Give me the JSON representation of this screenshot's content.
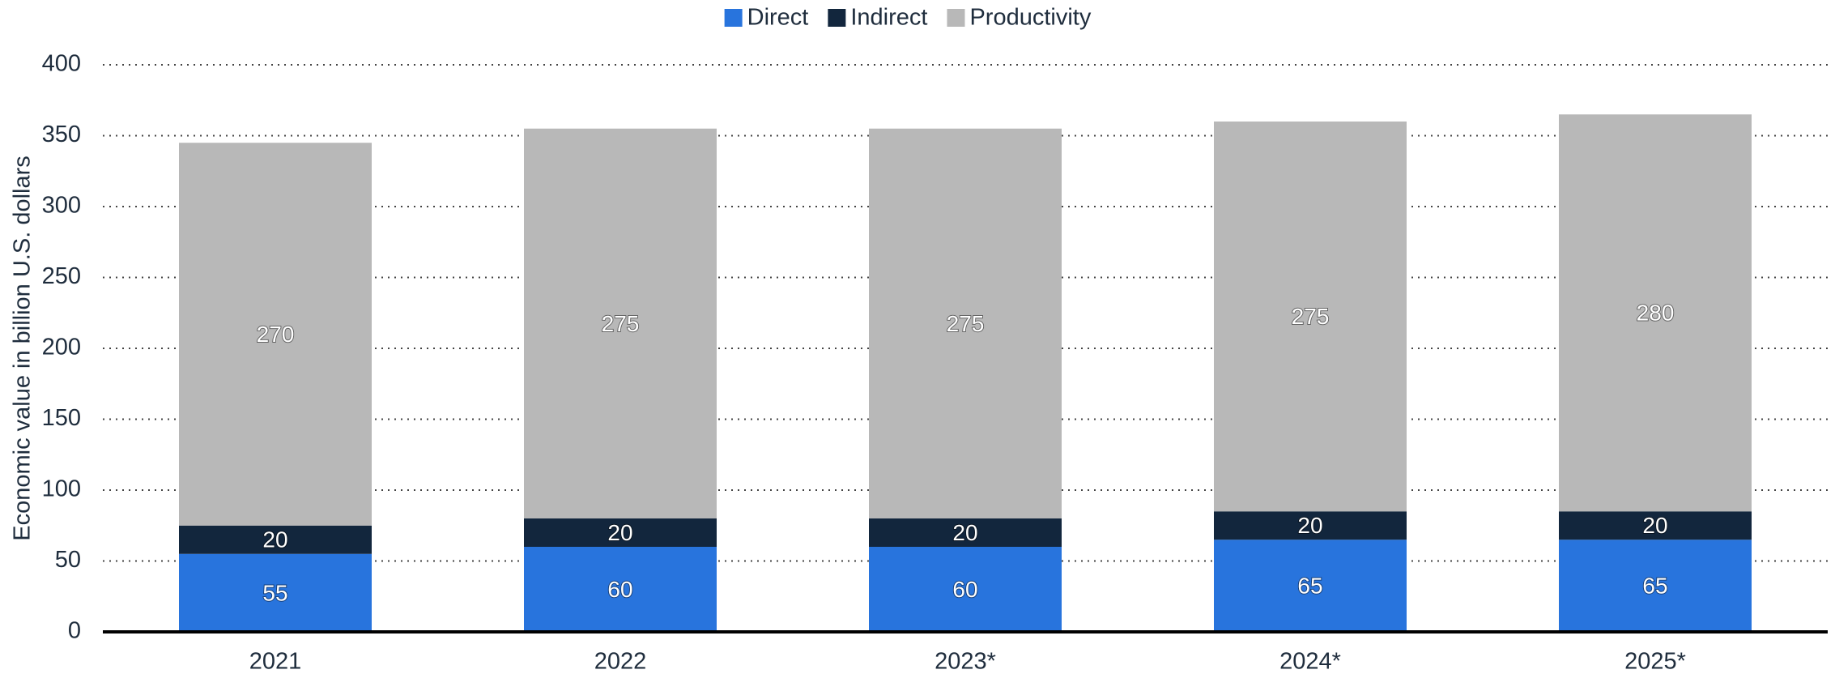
{
  "chart_data": {
    "type": "stacked_bar",
    "y_label": "Economic value in billion U.S. dollars",
    "categories": [
      "2021",
      "2022",
      "2023*",
      "2024*",
      "2025*"
    ],
    "series": [
      {
        "name": "Direct",
        "color": "#2874dd",
        "values": [
          55,
          60,
          60,
          65,
          65
        ]
      },
      {
        "name": "Indirect",
        "color": "#12263d",
        "values": [
          20,
          20,
          20,
          20,
          20
        ]
      },
      {
        "name": "Productivity",
        "color": "#b8b8b8",
        "values": [
          270,
          275,
          275,
          275,
          280
        ]
      }
    ],
    "ylim": [
      0,
      400
    ],
    "yticks": [
      0,
      50,
      100,
      150,
      200,
      250,
      300,
      350,
      400
    ],
    "grid": true,
    "legend": "top"
  }
}
